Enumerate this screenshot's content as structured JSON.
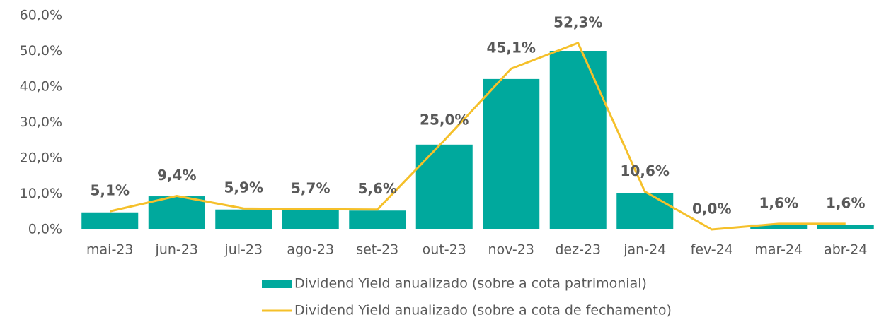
{
  "chart_data": {
    "type": "bar_line",
    "categories": [
      "mai-23",
      "jun-23",
      "jul-23",
      "ago-23",
      "set-23",
      "out-23",
      "nov-23",
      "dez-23",
      "jan-24",
      "fev-24",
      "mar-24",
      "abr-24"
    ],
    "series": [
      {
        "name": "Dividend Yield anualizado (sobre a cota patrimonial)",
        "type": "bar",
        "color": "#00a99d",
        "values": [
          4.8,
          9.3,
          5.6,
          5.5,
          5.3,
          23.8,
          42.2,
          50.1,
          10.1,
          0,
          1.4,
          1.3
        ]
      },
      {
        "name": "Dividend Yield anualizado (sobre a cota de fechamento)",
        "type": "line",
        "color": "#f5c02a",
        "values": [
          5.1,
          9.4,
          5.9,
          5.7,
          5.6,
          25.0,
          45.1,
          52.3,
          10.6,
          0.0,
          1.6,
          1.6
        ],
        "value_labels": [
          "5,1%",
          "9,4%",
          "5,9%",
          "5,7%",
          "5,6%",
          "25,0%",
          "45,1%",
          "52,3%",
          "10,6%",
          "0,0%",
          "1,6%",
          "1,6%"
        ]
      }
    ],
    "ylim": [
      0,
      60
    ],
    "yticks": [
      {
        "value": 0,
        "label": "0,0%"
      },
      {
        "value": 10,
        "label": "10,0%"
      },
      {
        "value": 20,
        "label": "20,0%"
      },
      {
        "value": 30,
        "label": "30,0%"
      },
      {
        "value": 40,
        "label": "40,0%"
      },
      {
        "value": 50,
        "label": "50,0%"
      },
      {
        "value": 60,
        "label": "60,0%"
      }
    ],
    "legend": "bottom"
  }
}
